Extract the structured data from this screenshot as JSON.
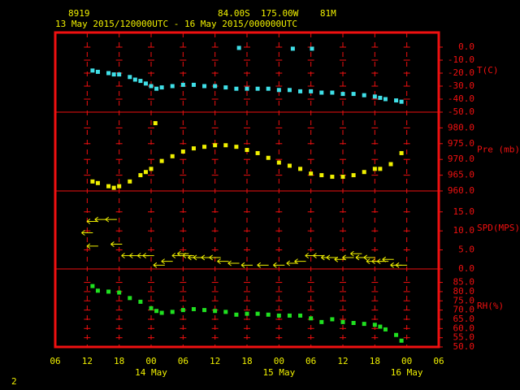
{
  "header": {
    "station": "8919",
    "location": "84.00S  175.00W    81M",
    "time_range": "13 May 2015/120000UTC - 16 May 2015/000000UTC"
  },
  "page_number": "2",
  "chart_data": [
    {
      "type": "scatter",
      "ylabel": "T(C)",
      "color": "#40e0e8",
      "xlim": [
        6,
        78
      ],
      "ylim": [
        -50,
        11.25
      ],
      "yticks": [
        {
          "value": 0,
          "label": "0.0"
        },
        {
          "value": -10,
          "label": "-10.0"
        },
        {
          "value": -20,
          "label": "-20.0"
        },
        {
          "value": -30,
          "label": "-30.0"
        },
        {
          "value": -40,
          "label": "-40.0"
        },
        {
          "value": -50,
          "label": "-50.0"
        }
      ],
      "x": [
        13,
        14,
        16,
        17,
        18,
        20,
        21,
        22,
        23,
        24,
        25,
        26,
        28,
        30,
        32,
        34,
        36,
        38,
        40,
        40.5,
        42,
        44,
        46,
        48,
        50,
        50.6,
        52,
        54,
        54.2,
        56,
        58,
        60,
        62,
        64,
        66,
        67,
        68,
        70,
        71
      ],
      "values": [
        -18,
        -19,
        -20,
        -21,
        -21,
        -23,
        -25,
        -26,
        -28,
        -30,
        -32,
        -31,
        -30,
        -29,
        -29,
        -30,
        -30,
        -31,
        -32,
        -0.6,
        -32,
        -32,
        -32,
        -33,
        -33,
        -1.2,
        -34,
        -34,
        -1.2,
        -35,
        -35,
        -36,
        -36,
        -37,
        -38,
        -39,
        -40,
        -41,
        -42
      ]
    },
    {
      "type": "scatter",
      "ylabel": "Pre (mb)",
      "color": "#f0f000",
      "xlim": [
        6,
        78
      ],
      "ylim": [
        960,
        985
      ],
      "yticks": [
        {
          "value": 980,
          "label": "980.0"
        },
        {
          "value": 975,
          "label": "975.0"
        },
        {
          "value": 970,
          "label": "970.0"
        },
        {
          "value": 965,
          "label": "965.0"
        },
        {
          "value": 960,
          "label": "960.0"
        }
      ],
      "x": [
        13,
        14,
        16,
        17,
        18,
        20,
        22,
        23,
        24,
        24.8,
        26,
        28,
        30,
        32,
        34,
        36,
        38,
        40,
        42,
        44,
        46,
        48,
        50,
        52,
        54,
        56,
        58,
        60,
        62,
        64,
        66,
        67,
        69,
        71
      ],
      "values": [
        963,
        962.5,
        961.5,
        961,
        961.5,
        963,
        965,
        966,
        967,
        981.5,
        969.5,
        971,
        972.5,
        973.5,
        974,
        974.5,
        974.5,
        974,
        973,
        972,
        970.5,
        969,
        968,
        967,
        965.5,
        965,
        964.5,
        964.5,
        965,
        966,
        967,
        967,
        968.5,
        972
      ]
    },
    {
      "type": "wind",
      "ylabel": "SPD(MPS)",
      "color": "#f0f000",
      "xlim": [
        6,
        78
      ],
      "ylim": [
        0,
        20.5
      ],
      "yticks": [
        {
          "value": 15,
          "label": "15.0"
        },
        {
          "value": 10,
          "label": "10.0"
        },
        {
          "value": 5,
          "label": "5.0"
        },
        {
          "value": 0,
          "label": "0.0"
        }
      ],
      "x": [
        12,
        13,
        13,
        14.5,
        16.5,
        17.5,
        19.5,
        21,
        22.5,
        23.5,
        25.5,
        27,
        29,
        30,
        31,
        32,
        33,
        34.5,
        36,
        37.5,
        39.5,
        42,
        45,
        48,
        50.5,
        52,
        54,
        55.5,
        57,
        58,
        59.5,
        61,
        62.5,
        63.5,
        65,
        65.5,
        66.5,
        67.5,
        68.5,
        70,
        71
      ],
      "values": [
        9.5,
        12.5,
        6,
        13,
        13,
        6.5,
        3.5,
        3.5,
        3.5,
        3.5,
        1,
        2,
        3.5,
        4,
        3.5,
        3,
        3,
        3,
        3,
        2,
        1.5,
        1,
        1,
        1,
        1.5,
        2,
        3.5,
        3.5,
        3,
        3,
        2.5,
        3,
        4,
        3,
        3,
        2,
        2,
        2,
        2.5,
        1,
        1
      ]
    },
    {
      "type": "scatter",
      "ylabel": "RH(%)",
      "color": "#20e020",
      "xlim": [
        6,
        78
      ],
      "ylim": [
        50,
        92.3
      ],
      "yticks": [
        {
          "value": 85,
          "label": "85.0"
        },
        {
          "value": 80,
          "label": "80.0"
        },
        {
          "value": 75,
          "label": "75.0"
        },
        {
          "value": 70,
          "label": "70.0"
        },
        {
          "value": 65,
          "label": "65.0"
        },
        {
          "value": 60,
          "label": "60.0"
        },
        {
          "value": 55,
          "label": "55.0"
        },
        {
          "value": 50,
          "label": "50.0"
        }
      ],
      "x": [
        13,
        14,
        16,
        18,
        20,
        22,
        24,
        25,
        26,
        28,
        30,
        32,
        34,
        36,
        38,
        40,
        42,
        44,
        46,
        48,
        50,
        52,
        54,
        56,
        58,
        60,
        62,
        64,
        66,
        67,
        68,
        70,
        71
      ],
      "values": [
        83,
        80.5,
        80,
        79.5,
        76.5,
        74.5,
        71,
        69.5,
        68.5,
        69,
        70,
        70.5,
        70,
        69.5,
        69,
        67.5,
        68,
        68,
        67.5,
        67,
        67,
        67,
        65.5,
        63.5,
        65,
        63.5,
        63,
        62.5,
        62,
        61,
        59.5,
        56.5,
        53.4
      ],
      "xticks": [
        {
          "value": 6,
          "label": "06"
        },
        12,
        18,
        {
          "value": 24,
          "label": "00"
        },
        {
          "value": 30,
          "label": "06"
        },
        {
          "value": 36,
          "label": "12"
        },
        {
          "value": 42,
          "label": "18"
        },
        {
          "value": 48,
          "label": "00"
        },
        {
          "value": 54,
          "label": "06"
        },
        {
          "value": 60,
          "label": "12"
        },
        {
          "value": 66,
          "label": "18"
        },
        {
          "value": 72,
          "label": "00"
        },
        {
          "value": 78,
          "label": "06"
        }
      ],
      "date_labels": [
        {
          "value": 24,
          "label": "14 May"
        },
        {
          "value": 48,
          "label": "15 May"
        },
        {
          "value": 72,
          "label": "16 May"
        }
      ]
    }
  ]
}
